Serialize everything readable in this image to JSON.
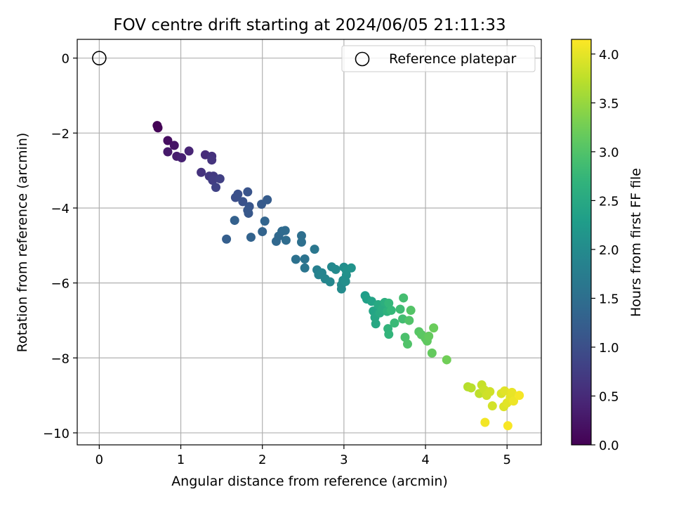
{
  "chart_data": {
    "type": "scatter",
    "title": "FOV centre drift starting at 2024/06/05 21:11:33",
    "xlabel": "Angular distance from reference (arcmin)",
    "ylabel": "Rotation from reference (arcmin)",
    "colorbar_label": "Hours from first FF file",
    "xlim": [
      -0.27,
      5.42
    ],
    "ylim": [
      -10.32,
      0.5
    ],
    "clim": [
      0.0,
      4.15
    ],
    "colormap": "viridis",
    "grid": true,
    "legend_position": "top-right",
    "xticks": [
      0,
      1,
      2,
      3,
      4,
      5
    ],
    "xtick_labels": [
      "0",
      "1",
      "2",
      "3",
      "4",
      "5"
    ],
    "yticks": [
      0,
      -2,
      -4,
      -6,
      -8,
      -10
    ],
    "ytick_labels": [
      "0",
      "−2",
      "−4",
      "−6",
      "−8",
      "−10"
    ],
    "cticks": [
      0.0,
      0.5,
      1.0,
      1.5,
      2.0,
      2.5,
      3.0,
      3.5,
      4.0
    ],
    "ctick_labels": [
      "0.0",
      "0.5",
      "1.0",
      "1.5",
      "2.0",
      "2.5",
      "3.0",
      "3.5",
      "4.0"
    ],
    "reference": {
      "label": "Reference platepar",
      "x": 0,
      "y": 0
    },
    "points": [
      {
        "x": 0.71,
        "y": -1.8,
        "h": 0.02
      },
      {
        "x": 0.72,
        "y": -1.86,
        "h": 0.03
      },
      {
        "x": 0.84,
        "y": -2.2,
        "h": 0.15
      },
      {
        "x": 0.92,
        "y": -2.33,
        "h": 0.22
      },
      {
        "x": 0.84,
        "y": -2.5,
        "h": 0.28
      },
      {
        "x": 0.95,
        "y": -2.62,
        "h": 0.33
      },
      {
        "x": 1.01,
        "y": -2.66,
        "h": 0.38
      },
      {
        "x": 1.1,
        "y": -2.48,
        "h": 0.42
      },
      {
        "x": 1.3,
        "y": -2.58,
        "h": 0.52
      },
      {
        "x": 1.38,
        "y": -2.62,
        "h": 0.58
      },
      {
        "x": 1.38,
        "y": -2.72,
        "h": 0.62
      },
      {
        "x": 1.25,
        "y": -3.05,
        "h": 0.6
      },
      {
        "x": 1.35,
        "y": -3.15,
        "h": 0.66
      },
      {
        "x": 1.4,
        "y": -3.15,
        "h": 0.7
      },
      {
        "x": 1.39,
        "y": -3.26,
        "h": 0.75
      },
      {
        "x": 1.48,
        "y": -3.22,
        "h": 0.78
      },
      {
        "x": 1.43,
        "y": -3.45,
        "h": 0.82
      },
      {
        "x": 1.67,
        "y": -3.72,
        "h": 1.0
      },
      {
        "x": 1.7,
        "y": -3.63,
        "h": 1.02
      },
      {
        "x": 1.76,
        "y": -3.83,
        "h": 1.05
      },
      {
        "x": 1.82,
        "y": -3.57,
        "h": 1.08
      },
      {
        "x": 1.84,
        "y": -3.96,
        "h": 1.1
      },
      {
        "x": 1.82,
        "y": -4.06,
        "h": 1.12
      },
      {
        "x": 1.83,
        "y": -4.14,
        "h": 1.14
      },
      {
        "x": 1.99,
        "y": -3.9,
        "h": 1.18
      },
      {
        "x": 2.06,
        "y": -3.78,
        "h": 1.2
      },
      {
        "x": 1.56,
        "y": -4.83,
        "h": 1.25
      },
      {
        "x": 1.66,
        "y": -4.33,
        "h": 1.28
      },
      {
        "x": 1.86,
        "y": -4.78,
        "h": 1.3
      },
      {
        "x": 2.0,
        "y": -4.63,
        "h": 1.32
      },
      {
        "x": 2.03,
        "y": -4.35,
        "h": 1.34
      },
      {
        "x": 2.17,
        "y": -4.89,
        "h": 1.38
      },
      {
        "x": 2.2,
        "y": -4.75,
        "h": 1.4
      },
      {
        "x": 2.24,
        "y": -4.62,
        "h": 1.42
      },
      {
        "x": 2.28,
        "y": -4.6,
        "h": 1.44
      },
      {
        "x": 2.29,
        "y": -4.86,
        "h": 1.46
      },
      {
        "x": 2.48,
        "y": -4.74,
        "h": 1.5
      },
      {
        "x": 2.48,
        "y": -4.91,
        "h": 1.52
      },
      {
        "x": 2.41,
        "y": -5.37,
        "h": 1.55
      },
      {
        "x": 2.52,
        "y": -5.36,
        "h": 1.58
      },
      {
        "x": 2.52,
        "y": -5.6,
        "h": 1.62
      },
      {
        "x": 2.64,
        "y": -5.1,
        "h": 1.65
      },
      {
        "x": 2.67,
        "y": -5.65,
        "h": 1.8
      },
      {
        "x": 2.69,
        "y": -5.78,
        "h": 1.85
      },
      {
        "x": 2.73,
        "y": -5.73,
        "h": 1.88
      },
      {
        "x": 2.77,
        "y": -5.89,
        "h": 1.9
      },
      {
        "x": 2.83,
        "y": -5.97,
        "h": 1.92
      },
      {
        "x": 2.85,
        "y": -5.57,
        "h": 1.95
      },
      {
        "x": 2.9,
        "y": -5.64,
        "h": 1.97
      },
      {
        "x": 2.97,
        "y": -6.05,
        "h": 1.99
      },
      {
        "x": 2.97,
        "y": -6.16,
        "h": 2.0
      },
      {
        "x": 2.99,
        "y": -5.93,
        "h": 2.02
      },
      {
        "x": 3.0,
        "y": -5.58,
        "h": 2.04
      },
      {
        "x": 3.02,
        "y": -5.96,
        "h": 2.06
      },
      {
        "x": 3.03,
        "y": -5.79,
        "h": 2.08
      },
      {
        "x": 3.03,
        "y": -5.67,
        "h": 2.1
      },
      {
        "x": 3.09,
        "y": -5.6,
        "h": 2.12
      },
      {
        "x": 3.26,
        "y": -6.34,
        "h": 2.3
      },
      {
        "x": 3.28,
        "y": -6.43,
        "h": 2.35
      },
      {
        "x": 3.34,
        "y": -6.49,
        "h": 2.4
      },
      {
        "x": 3.36,
        "y": -6.75,
        "h": 2.42
      },
      {
        "x": 3.38,
        "y": -6.92,
        "h": 2.45
      },
      {
        "x": 3.39,
        "y": -7.09,
        "h": 2.48
      },
      {
        "x": 3.42,
        "y": -6.58,
        "h": 2.5
      },
      {
        "x": 3.44,
        "y": -6.8,
        "h": 2.52
      },
      {
        "x": 3.47,
        "y": -6.7,
        "h": 2.55
      },
      {
        "x": 3.5,
        "y": -6.52,
        "h": 2.6
      },
      {
        "x": 3.53,
        "y": -6.76,
        "h": 2.65
      },
      {
        "x": 3.54,
        "y": -7.22,
        "h": 2.7
      },
      {
        "x": 3.55,
        "y": -7.37,
        "h": 2.72
      },
      {
        "x": 3.55,
        "y": -6.54,
        "h": 2.74
      },
      {
        "x": 3.58,
        "y": -6.73,
        "h": 2.76
      },
      {
        "x": 3.62,
        "y": -7.07,
        "h": 2.8
      },
      {
        "x": 3.69,
        "y": -6.7,
        "h": 2.85
      },
      {
        "x": 3.72,
        "y": -6.96,
        "h": 2.88
      },
      {
        "x": 3.73,
        "y": -6.4,
        "h": 2.9
      },
      {
        "x": 3.75,
        "y": -7.45,
        "h": 2.95
      },
      {
        "x": 3.78,
        "y": -7.63,
        "h": 3.0
      },
      {
        "x": 3.8,
        "y": -7.0,
        "h": 3.0
      },
      {
        "x": 3.82,
        "y": -6.73,
        "h": 3.02
      },
      {
        "x": 3.92,
        "y": -7.3,
        "h": 3.05
      },
      {
        "x": 3.95,
        "y": -7.38,
        "h": 3.08
      },
      {
        "x": 4.0,
        "y": -7.48,
        "h": 3.1
      },
      {
        "x": 4.02,
        "y": -7.55,
        "h": 3.12
      },
      {
        "x": 4.04,
        "y": -7.42,
        "h": 3.15
      },
      {
        "x": 4.08,
        "y": -7.87,
        "h": 3.15
      },
      {
        "x": 4.1,
        "y": -7.2,
        "h": 3.2
      },
      {
        "x": 4.26,
        "y": -8.05,
        "h": 3.25
      },
      {
        "x": 4.52,
        "y": -8.77,
        "h": 3.7
      },
      {
        "x": 4.56,
        "y": -8.8,
        "h": 3.72
      },
      {
        "x": 4.66,
        "y": -8.95,
        "h": 3.75
      },
      {
        "x": 4.69,
        "y": -8.72,
        "h": 3.8
      },
      {
        "x": 4.72,
        "y": -8.85,
        "h": 3.82
      },
      {
        "x": 4.75,
        "y": -9.0,
        "h": 3.85
      },
      {
        "x": 4.79,
        "y": -8.9,
        "h": 3.86
      },
      {
        "x": 4.82,
        "y": -9.28,
        "h": 3.88
      },
      {
        "x": 4.93,
        "y": -8.95,
        "h": 3.92
      },
      {
        "x": 4.96,
        "y": -9.3,
        "h": 3.95
      },
      {
        "x": 4.97,
        "y": -8.88,
        "h": 3.97
      },
      {
        "x": 5.0,
        "y": -9.2,
        "h": 3.98
      },
      {
        "x": 5.04,
        "y": -9.05,
        "h": 4.0
      },
      {
        "x": 5.06,
        "y": -8.92,
        "h": 4.02
      },
      {
        "x": 5.08,
        "y": -9.15,
        "h": 4.05
      },
      {
        "x": 5.15,
        "y": -9.0,
        "h": 4.1
      },
      {
        "x": 4.73,
        "y": -9.72,
        "h": 4.08
      },
      {
        "x": 5.01,
        "y": -9.81,
        "h": 4.12
      }
    ]
  }
}
